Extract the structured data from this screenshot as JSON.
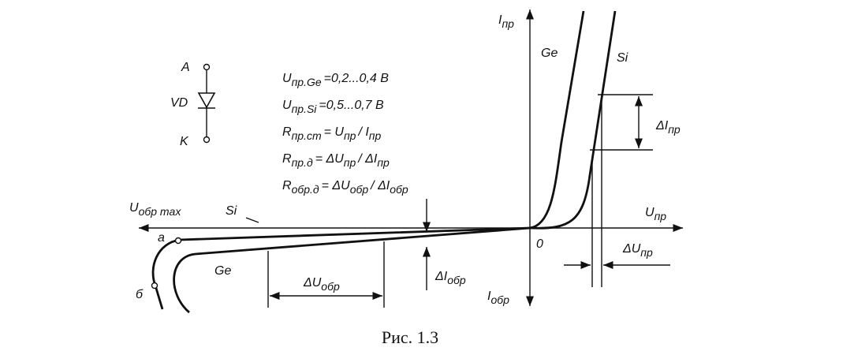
{
  "axes": {
    "y_pos": [
      "I",
      "пр"
    ],
    "y_neg": [
      "I",
      "обр"
    ],
    "x_pos": [
      "U",
      "пр"
    ],
    "x_neg": [
      "U",
      "обр max"
    ],
    "origin": [
      "0"
    ]
  },
  "diode": {
    "anode": [
      "A"
    ],
    "label": [
      "VD"
    ],
    "cathode": [
      "K"
    ]
  },
  "curves": {
    "ge_forward": [
      "Ge"
    ],
    "si_forward": [
      "Si"
    ],
    "si_reverse": [
      "Si"
    ],
    "ge_reverse": [
      "Ge"
    ],
    "point_a": [
      "а"
    ],
    "point_b": [
      "б"
    ]
  },
  "formulas": [
    [
      "U",
      "пр.Ge",
      "=0,2...0,4 В"
    ],
    [
      "U",
      "пр.Si",
      "=0,5...0,7 В"
    ],
    [
      "R",
      "пр.ст",
      "= U",
      "пр",
      "/ I",
      "пр"
    ],
    [
      "R",
      "пр.д",
      "= ΔU",
      "пр",
      "/ ΔI",
      "пр"
    ],
    [
      "R",
      "обр.д",
      "= ΔU",
      "обр",
      "/ ΔI",
      "обр"
    ]
  ],
  "annotations": {
    "delta_i_pr": [
      "ΔI",
      "пр"
    ],
    "delta_u_pr": [
      "ΔU",
      "пр"
    ],
    "delta_u_obr": [
      "ΔU",
      "обр"
    ],
    "delta_i_obr": [
      "ΔI",
      "обр"
    ]
  },
  "caption": "Рис. 1.3"
}
